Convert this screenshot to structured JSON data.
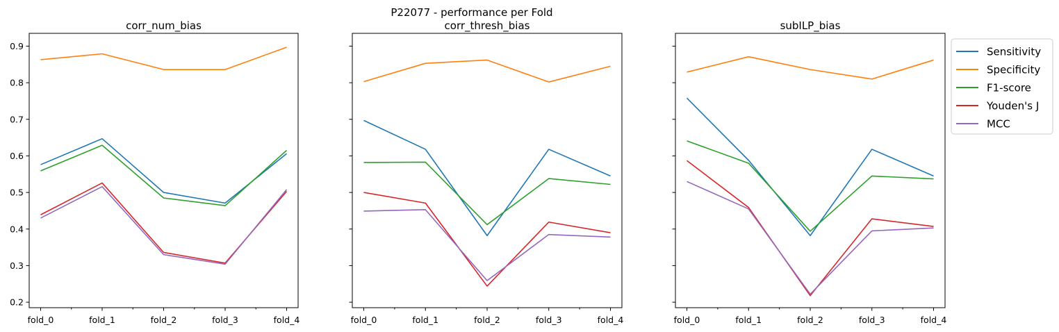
{
  "chart_data": {
    "suptitle": "P22077 - performance per Fold",
    "type": "line",
    "categories": [
      "fold_0",
      "fold_1",
      "fold_2",
      "fold_3",
      "fold_4"
    ],
    "ylim": [
      0.185,
      0.935
    ],
    "yticks": [
      0.2,
      0.3,
      0.4,
      0.5,
      0.6,
      0.7,
      0.8,
      0.9
    ],
    "sharey": true,
    "legend": {
      "location": "outside-right",
      "entries": [
        "Sensitivity",
        "Specificity",
        "F1-score",
        "Youden's J",
        "MCC"
      ]
    },
    "series_colors": {
      "Sensitivity": "#1f77b4",
      "Specificity": "#ff7f0e",
      "F1-score": "#2ca02c",
      "Youden's J": "#d62728",
      "MCC": "#9467bd"
    },
    "panels": [
      {
        "title": "corr_num_bias",
        "series": [
          {
            "name": "Sensitivity",
            "values": [
              0.576,
              0.647,
              0.5,
              0.471,
              0.606
            ]
          },
          {
            "name": "Specificity",
            "values": [
              0.863,
              0.879,
              0.836,
              0.836,
              0.897
            ]
          },
          {
            "name": "F1-score",
            "values": [
              0.559,
              0.629,
              0.485,
              0.464,
              0.615
            ]
          },
          {
            "name": "Youden's J",
            "values": [
              0.439,
              0.526,
              0.336,
              0.307,
              0.503
            ]
          },
          {
            "name": "MCC",
            "values": [
              0.43,
              0.516,
              0.33,
              0.304,
              0.508
            ]
          }
        ]
      },
      {
        "title": "corr_thresh_bias",
        "series": [
          {
            "name": "Sensitivity",
            "values": [
              0.697,
              0.618,
              0.382,
              0.618,
              0.545
            ]
          },
          {
            "name": "Specificity",
            "values": [
              0.803,
              0.853,
              0.862,
              0.802,
              0.845
            ]
          },
          {
            "name": "F1-score",
            "values": [
              0.582,
              0.583,
              0.412,
              0.538,
              0.522
            ]
          },
          {
            "name": "Youden's J",
            "values": [
              0.5,
              0.471,
              0.244,
              0.419,
              0.39
            ]
          },
          {
            "name": "MCC",
            "values": [
              0.449,
              0.453,
              0.259,
              0.385,
              0.378
            ]
          }
        ]
      },
      {
        "title": "subILP_bias",
        "series": [
          {
            "name": "Sensitivity",
            "values": [
              0.758,
              0.588,
              0.382,
              0.618,
              0.545
            ]
          },
          {
            "name": "Specificity",
            "values": [
              0.829,
              0.871,
              0.836,
              0.81,
              0.862
            ]
          },
          {
            "name": "F1-score",
            "values": [
              0.641,
              0.58,
              0.394,
              0.545,
              0.537
            ]
          },
          {
            "name": "Youden's J",
            "values": [
              0.587,
              0.459,
              0.218,
              0.428,
              0.407
            ]
          },
          {
            "name": "MCC",
            "values": [
              0.53,
              0.455,
              0.222,
              0.395,
              0.403
            ]
          }
        ]
      }
    ]
  }
}
